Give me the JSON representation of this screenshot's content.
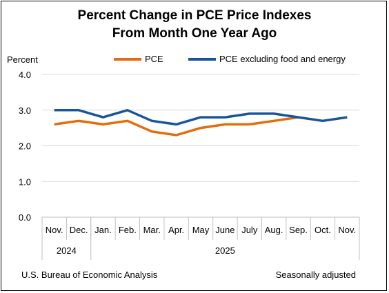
{
  "title_line1": "Percent Change in PCE Price Indexes",
  "title_line2": "From Month One Year Ago",
  "source": "U.S. Bureau of Economic Analysis",
  "note": "Seasonally adjusted",
  "chart_data": {
    "type": "line",
    "title": "Percent Change in PCE Price Indexes From Month One Year Ago",
    "ylabel": "Percent",
    "xlabel": "",
    "ylim": [
      0,
      4
    ],
    "yticks": [
      "0.0",
      "1.0",
      "2.0",
      "3.0",
      "4.0"
    ],
    "grid": true,
    "legend_position": "top",
    "categories": [
      "Nov.",
      "Dec.",
      "Jan.",
      "Feb.",
      "Mar.",
      "Apr.",
      "May",
      "June",
      "July",
      "Aug.",
      "Sep.",
      "Oct.",
      "Nov."
    ],
    "year_groups": [
      {
        "label": "2024",
        "start": 0,
        "end": 1
      },
      {
        "label": "2025",
        "start": 2,
        "end": 12
      }
    ],
    "series": [
      {
        "name": "PCE",
        "color": "#E46C0A",
        "values": [
          2.6,
          2.7,
          2.6,
          2.7,
          2.4,
          2.3,
          2.5,
          2.6,
          2.6,
          2.7,
          2.8,
          null,
          null
        ]
      },
      {
        "name": "PCE excluding food and energy",
        "color": "#17569B",
        "values": [
          3.0,
          3.0,
          2.8,
          3.0,
          2.7,
          2.6,
          2.8,
          2.8,
          2.9,
          2.9,
          2.8,
          2.7,
          2.8
        ]
      }
    ]
  }
}
